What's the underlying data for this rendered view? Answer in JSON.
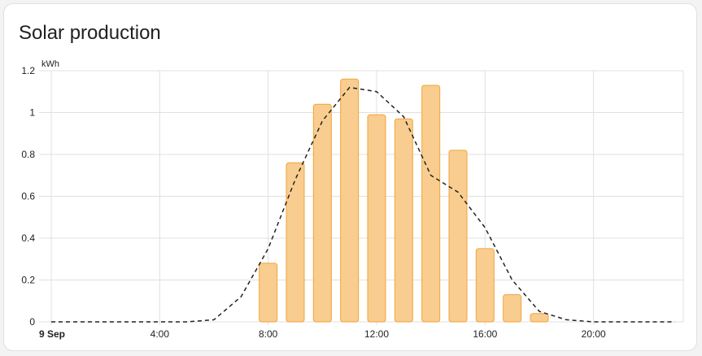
{
  "card": {
    "title": "Solar production"
  },
  "colors": {
    "bar_fill": "#f8cd8f",
    "bar_stroke": "#f2a43a",
    "forecast_line": "#222222",
    "grid": "#e0e0e0",
    "axis_text": "#222222"
  },
  "chart_data": {
    "type": "bar",
    "title": "",
    "ylabel": "kWh",
    "xlabel": "",
    "ylim": [
      0,
      1.2
    ],
    "xlim": [
      0,
      23
    ],
    "y_ticks": [
      "0",
      "0.2",
      "0.4",
      "0.6",
      "0.8",
      "1",
      "1.2"
    ],
    "x_ticks": [
      {
        "hour": 0,
        "label": "9 Sep",
        "bold": true
      },
      {
        "hour": 4,
        "label": "4:00"
      },
      {
        "hour": 8,
        "label": "8:00"
      },
      {
        "hour": 12,
        "label": "12:00"
      },
      {
        "hour": 16,
        "label": "16:00"
      },
      {
        "hour": 20,
        "label": "20:00"
      }
    ],
    "grid": true,
    "series": [
      {
        "kind": "bar",
        "hours": [
          8,
          9,
          10,
          11,
          12,
          13,
          14,
          15,
          16,
          17,
          18
        ],
        "values": [
          0.28,
          0.76,
          1.04,
          1.16,
          0.99,
          0.97,
          1.13,
          0.82,
          0.35,
          0.13,
          0.04
        ]
      },
      {
        "kind": "line",
        "style": "dashed",
        "hours": [
          0,
          1,
          2,
          3,
          4,
          5,
          6,
          7,
          8,
          9,
          10,
          11,
          12,
          13,
          14,
          15,
          16,
          17,
          18,
          19,
          20,
          21,
          22,
          23
        ],
        "values": [
          0,
          0,
          0,
          0,
          0,
          0,
          0.01,
          0.12,
          0.35,
          0.68,
          0.96,
          1.12,
          1.1,
          0.98,
          0.7,
          0.62,
          0.45,
          0.2,
          0.05,
          0.01,
          0,
          0,
          0,
          0
        ]
      }
    ]
  }
}
